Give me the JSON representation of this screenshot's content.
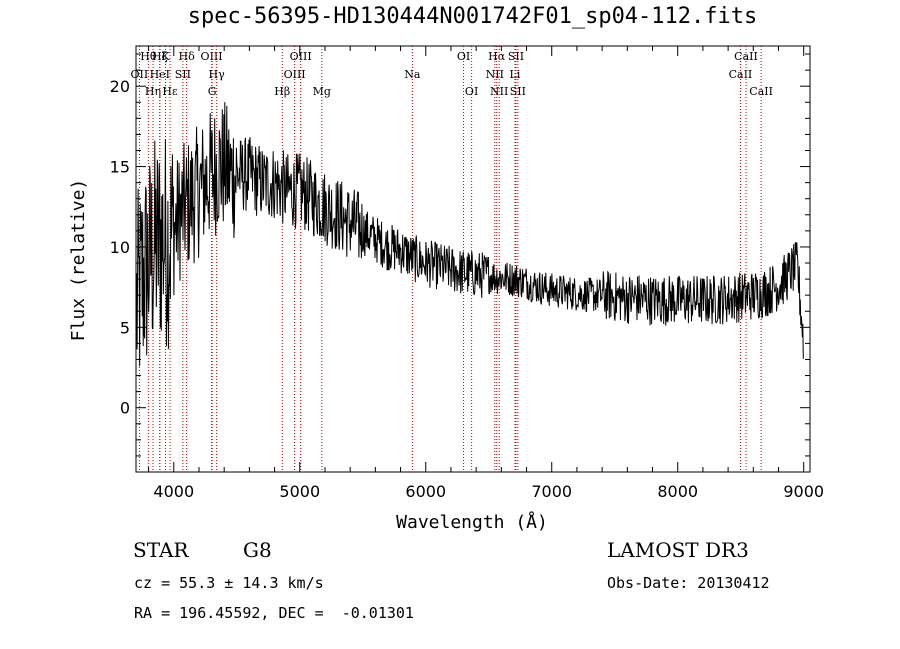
{
  "header": {
    "title": "spec-56395-HD130444N001742F01_sp04-112.fits"
  },
  "footer": {
    "object_class": "STAR",
    "subclass": "G8",
    "survey": "LAMOST DR3",
    "redshift": "cz = 55.3 ± 14.3 km/s",
    "obs_date": "Obs-Date: 20130412",
    "coords": "RA = 196.45592, DEC =  -0.01301"
  },
  "chart_data": {
    "type": "line",
    "title": "spec-56395-HD130444N001742F01_sp04-112.fits",
    "xlabel": "Wavelength (Å)",
    "ylabel": "Flux (relative)",
    "xlim": [
      3700,
      9050
    ],
    "ylim": [
      -4,
      22.5
    ],
    "x_ticks": [
      4000,
      5000,
      6000,
      7000,
      8000,
      9000
    ],
    "y_ticks": [
      0,
      5,
      10,
      15,
      20
    ],
    "grid": false,
    "line_color": "#000000",
    "marker_color": "#c00000",
    "series": [
      {
        "x": [
          3700,
          3750,
          3800,
          3850,
          3900,
          3950,
          4000,
          4050,
          4100,
          4150,
          4200,
          4250,
          4300,
          4350,
          4400,
          4450,
          4500,
          4600,
          4700,
          4800,
          4900,
          5000,
          5100,
          5200,
          5300,
          5400,
          5500,
          5600,
          5700,
          5800,
          5900,
          6000,
          6100,
          6200,
          6300,
          6400,
          6500,
          6600,
          6700,
          6800,
          6900,
          7000,
          7100,
          7200,
          7300,
          7400,
          7500,
          7600,
          7700,
          7800,
          7900,
          8000,
          8100,
          8200,
          8300,
          8400,
          8500,
          8600,
          8700,
          8800,
          8850,
          8900,
          8950,
          9000
        ],
        "y": [
          6,
          8,
          9,
          10,
          10.5,
          10.5,
          11,
          12,
          12.5,
          13,
          13.5,
          14,
          14.5,
          15,
          15,
          14.5,
          14.5,
          14.5,
          14,
          14,
          13.5,
          13.5,
          13,
          12.5,
          12,
          11.5,
          11,
          10.5,
          10,
          9.8,
          9.3,
          9,
          8.8,
          8.6,
          8.4,
          8.3,
          8.2,
          8.1,
          8,
          7.8,
          7.5,
          7.3,
          7.2,
          7.1,
          7,
          7,
          6.9,
          6.8,
          6.8,
          6.7,
          6.7,
          6.7,
          6.7,
          6.7,
          6.7,
          6.8,
          6.9,
          7,
          7.2,
          7.6,
          8,
          8.5,
          8.8,
          4
        ]
      }
    ],
    "line_markers": [
      {
        "label": "OII",
        "x": 3727,
        "row": 1
      },
      {
        "label": "Hθ",
        "x": 3798,
        "row": 0
      },
      {
        "label": "Hη",
        "x": 3835,
        "row": 2
      },
      {
        "label": "Hζ",
        "x": 3889,
        "row": 0
      },
      {
        "label": "HeI",
        "x": 3889,
        "row": 1
      },
      {
        "label": "K",
        "x": 3934,
        "row": 0
      },
      {
        "label": "Hε",
        "x": 3970,
        "row": 2
      },
      {
        "label": "SII",
        "x": 4072,
        "row": 1
      },
      {
        "label": "Hδ",
        "x": 4102,
        "row": 0
      },
      {
        "label": "OIII",
        "x": 4300,
        "row": 0
      },
      {
        "label": "Hγ",
        "x": 4340,
        "row": 1
      },
      {
        "label": "G",
        "x": 4304,
        "row": 2
      },
      {
        "label": "Hβ",
        "x": 4861,
        "row": 2
      },
      {
        "label": "OIII",
        "x": 4959,
        "row": 1
      },
      {
        "label": "OIII",
        "x": 5007,
        "row": 0
      },
      {
        "label": "Mg",
        "x": 5175,
        "row": 2
      },
      {
        "label": "Na",
        "x": 5894,
        "row": 1
      },
      {
        "label": "OI",
        "x": 6300,
        "row": 0
      },
      {
        "label": "OI",
        "x": 6364,
        "row": 2
      },
      {
        "label": "NII",
        "x": 6548,
        "row": 1
      },
      {
        "label": "Hα",
        "x": 6563,
        "row": 0
      },
      {
        "label": "NII",
        "x": 6583,
        "row": 2
      },
      {
        "label": "Li",
        "x": 6708,
        "row": 1
      },
      {
        "label": "SII",
        "x": 6716,
        "row": 0
      },
      {
        "label": "SII",
        "x": 6731,
        "row": 2
      },
      {
        "label": "CaII",
        "x": 8498,
        "row": 1
      },
      {
        "label": "CaII",
        "x": 8542,
        "row": 0
      },
      {
        "label": "CaII",
        "x": 8662,
        "row": 2
      }
    ]
  }
}
